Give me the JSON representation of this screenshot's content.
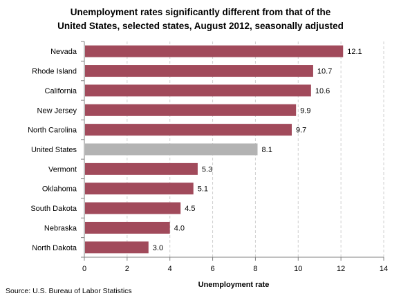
{
  "chart_data": {
    "type": "bar",
    "orientation": "horizontal",
    "title_lines": [
      "Unemployment rates significantly different from that of the",
      "United States, selected states, August 2012, seasonally adjusted"
    ],
    "categories": [
      "Nevada",
      "Rhode Island",
      "California",
      "New Jersey",
      "North Carolina",
      "United States",
      "Vermont",
      "Oklahoma",
      "South Dakota",
      "Nebraska",
      "North Dakota"
    ],
    "values": [
      12.1,
      10.7,
      10.6,
      9.9,
      9.7,
      8.1,
      5.3,
      5.1,
      4.5,
      4.0,
      3.0
    ],
    "value_labels": [
      "12.1",
      "10.7",
      "10.6",
      "9.9",
      "9.7",
      "8.1",
      "5.3",
      "5.1",
      "4.5",
      "4.0",
      "3.0"
    ],
    "xlabel": "Unemployment rate",
    "xlim": [
      0,
      14
    ],
    "xticks": [
      0,
      2,
      4,
      6,
      8,
      10,
      12,
      14
    ],
    "xtick_labels": [
      "0",
      "2",
      "4",
      "6",
      "8",
      "10",
      "12",
      "14"
    ],
    "grid": "vertical dashed",
    "colors": {
      "bar": "#A14A5B",
      "highlight": "#B3B3B3",
      "grid": "#CFCFCF",
      "axis": "#808080"
    },
    "highlight_category": "United States",
    "source": "Source: U.S. Bureau of Labor Statistics"
  }
}
